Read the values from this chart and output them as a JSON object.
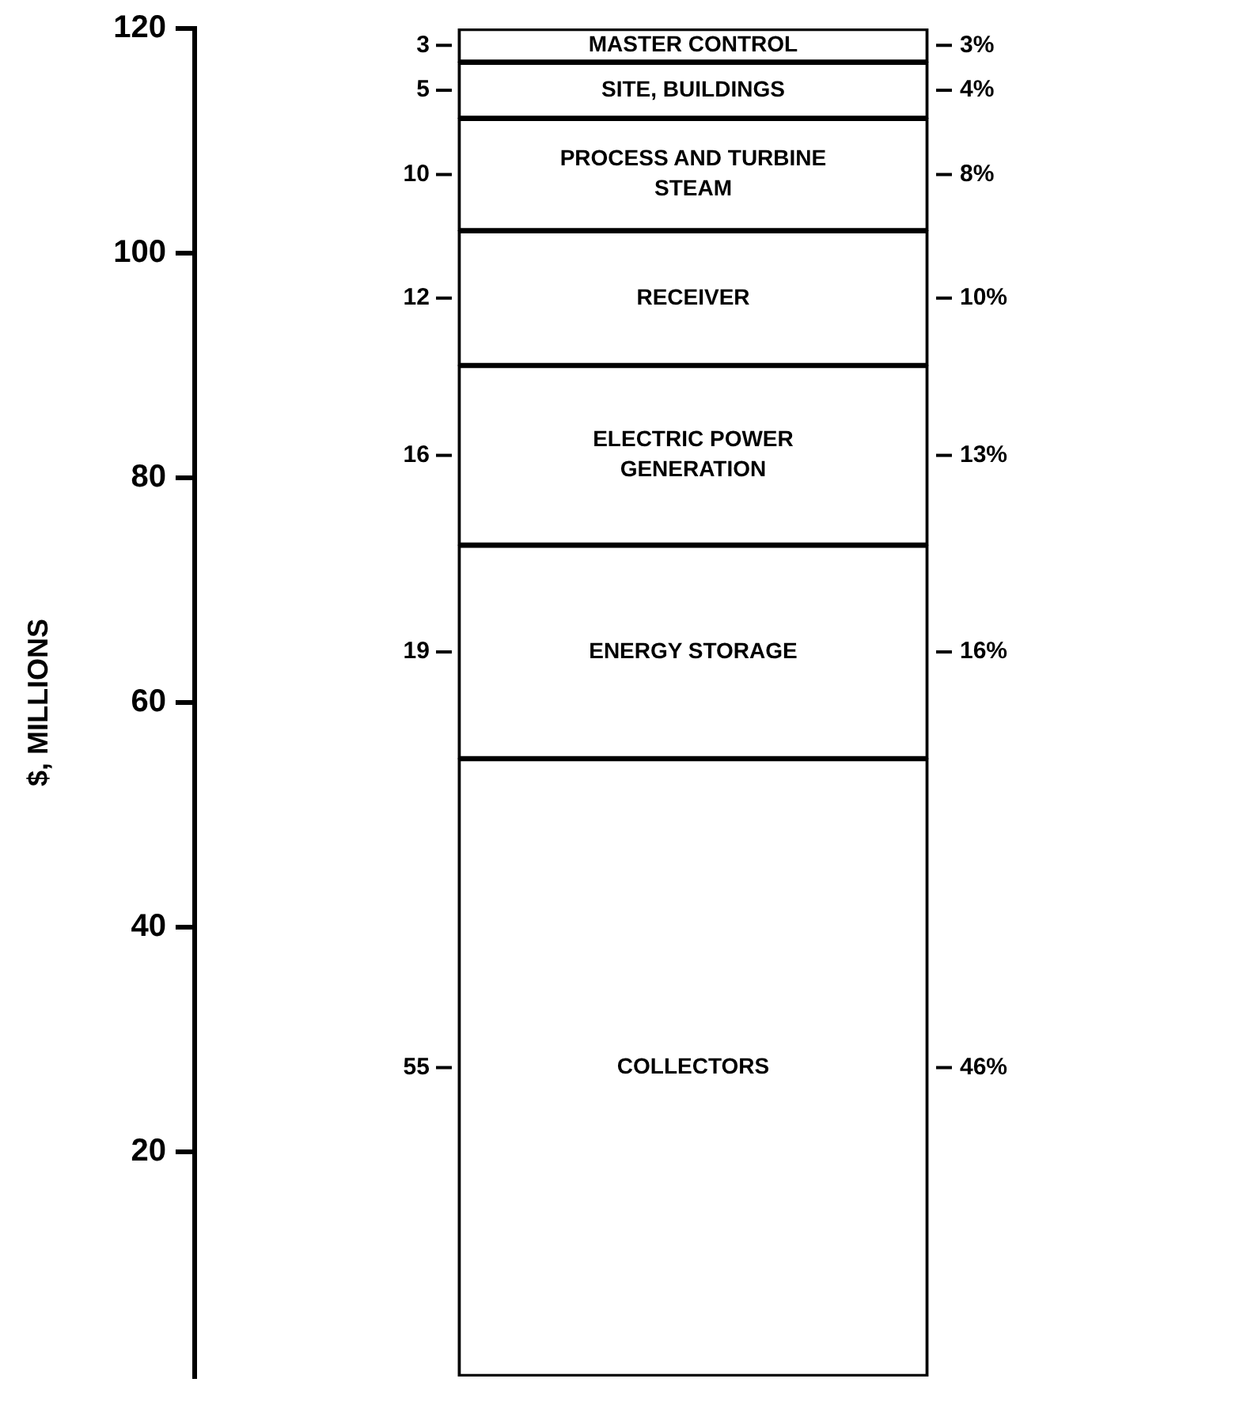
{
  "chart_data": {
    "type": "bar",
    "stacked": true,
    "ylabel": "$, MILLIONS",
    "categories": [
      null
    ],
    "ylim": [
      0,
      120
    ],
    "yticks": [
      20,
      40,
      60,
      80,
      100,
      120
    ],
    "grid": false,
    "legend": false,
    "data_labels": true,
    "series": [
      {
        "name": "COLLECTORS",
        "color": "#ffffff",
        "values": [
          55
        ]
      },
      {
        "name": "ENERGY STORAGE",
        "color": "#ffffff",
        "values": [
          19
        ]
      },
      {
        "name": "ELECTRIC POWER GENERATION",
        "color": "#ffffff",
        "values": [
          16
        ]
      },
      {
        "name": "RECEIVER",
        "color": "#ffffff",
        "values": [
          12
        ]
      },
      {
        "name": "PROCESS AND TURBINE STEAM",
        "color": "#ffffff",
        "values": [
          10
        ]
      },
      {
        "name": "SITE, BUILDINGS",
        "color": "#ffffff",
        "values": [
          5
        ]
      },
      {
        "name": "MASTER CONTROL",
        "color": "#ffffff",
        "values": [
          3
        ]
      }
    ],
    "annotations": [
      "46%",
      "16%",
      "13%",
      "10%",
      "8%",
      "4%",
      "3%"
    ]
  }
}
